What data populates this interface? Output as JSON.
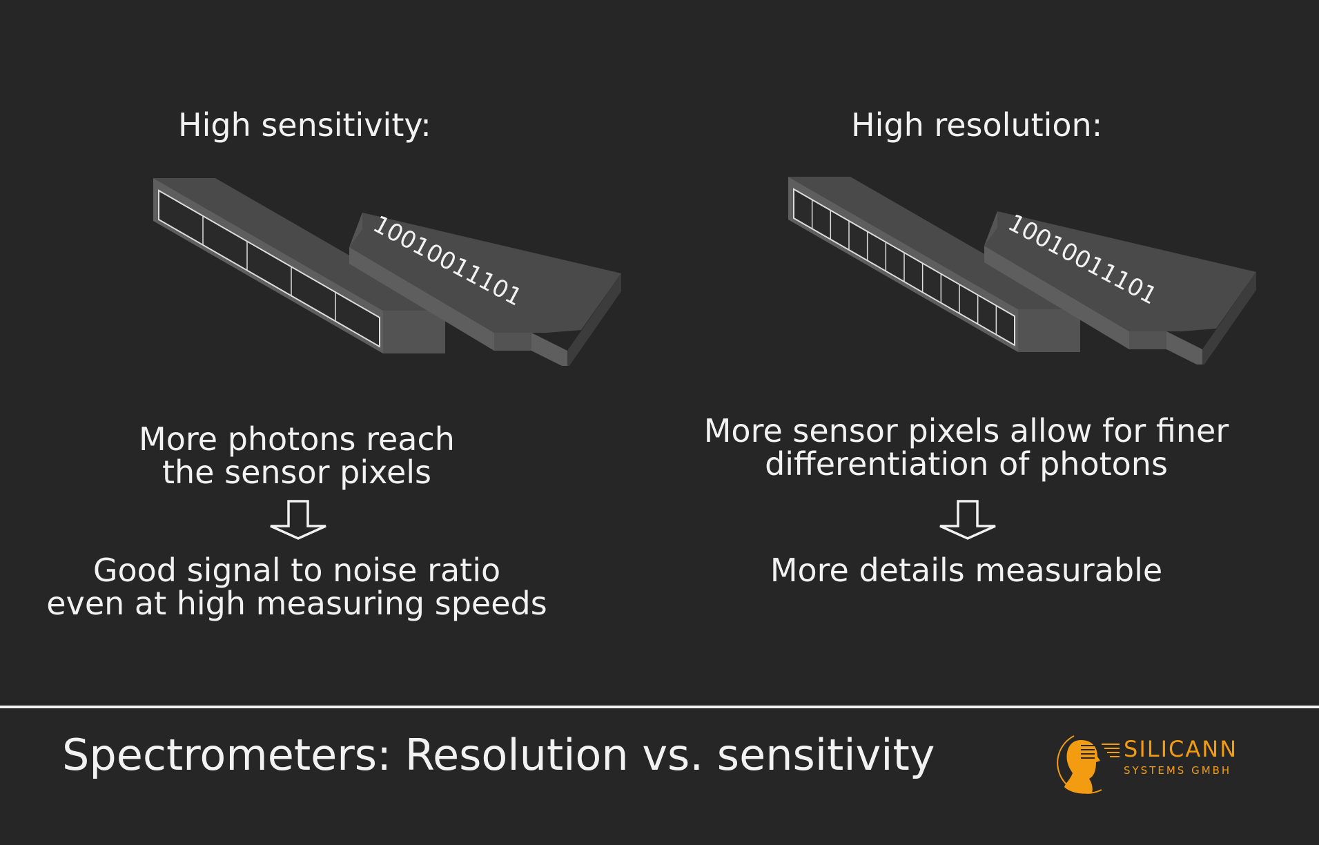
{
  "left_panel": {
    "title": "High sensitivity:",
    "binary": "10010011101",
    "pixel_count": 5,
    "caption_lines": [
      "More photons reach",
      "the sensor pixels"
    ],
    "result_lines": [
      "Good signal to noise ratio",
      "even at high measuring speeds"
    ]
  },
  "right_panel": {
    "title": "High resolution:",
    "binary": "10010011101",
    "pixel_count": 12,
    "caption_lines": [
      "More sensor pixels allow for finer",
      "differentiation of photons"
    ],
    "result_lines": [
      "More details measurable"
    ]
  },
  "spectrum_colors": [
    "#c0392b",
    "#c8702a",
    "#b8b02a",
    "#8fb02a",
    "#3fa845",
    "#2f9a86",
    "#3a6fb0",
    "#3a40b0",
    "#5a3ab8",
    "#7a3ab8"
  ],
  "footer": {
    "title": "Spectrometers: Resolution vs. sensitivity"
  },
  "logo": {
    "name": "SILICANN",
    "subtitle": "SYSTEMS GMBH",
    "color": "#f39c12"
  }
}
